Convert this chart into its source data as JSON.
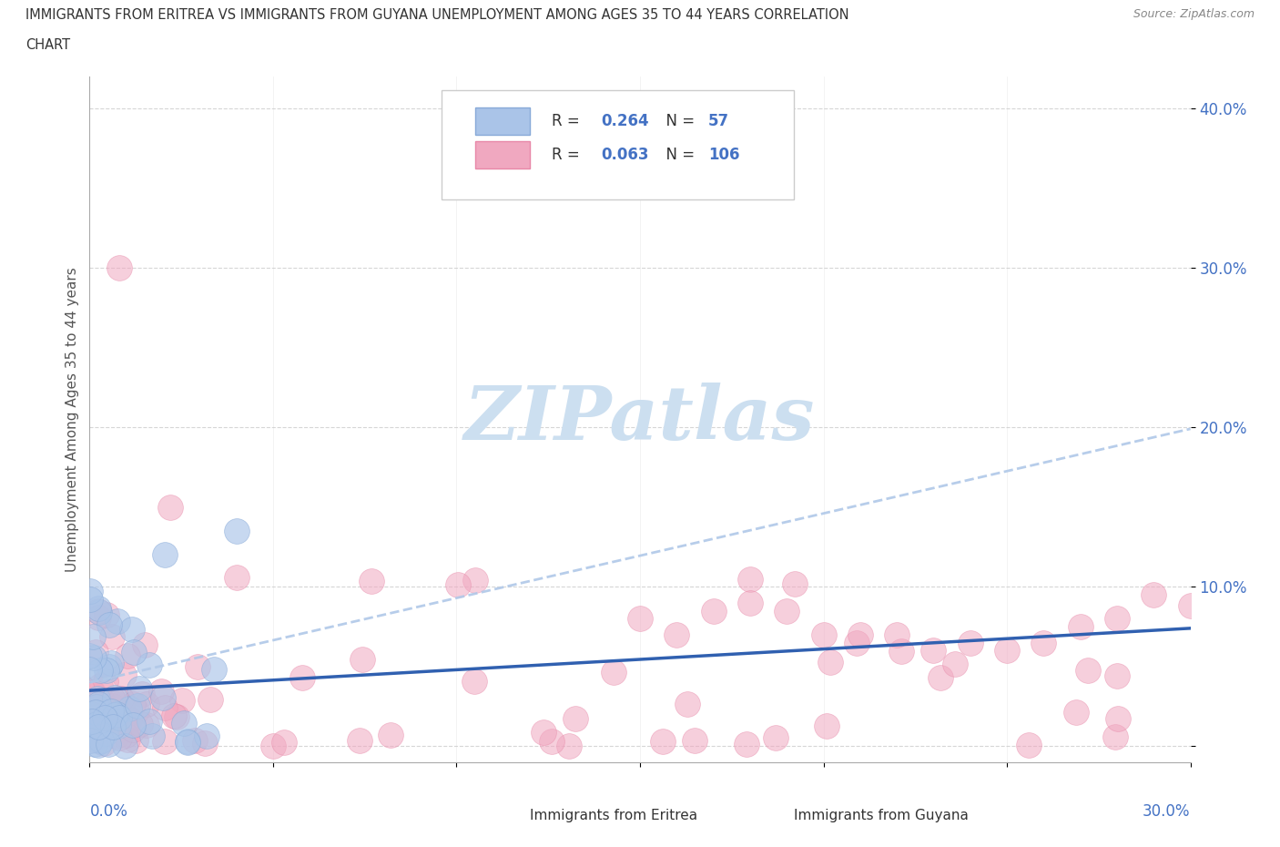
{
  "title_line1": "IMMIGRANTS FROM ERITREA VS IMMIGRANTS FROM GUYANA UNEMPLOYMENT AMONG AGES 35 TO 44 YEARS CORRELATION",
  "title_line2": "CHART",
  "source": "Source: ZipAtlas.com",
  "ylabel": "Unemployment Among Ages 35 to 44 years",
  "xlim": [
    0.0,
    0.3
  ],
  "ylim": [
    -0.01,
    0.42
  ],
  "eritrea_R": 0.264,
  "eritrea_N": 57,
  "guyana_R": 0.063,
  "guyana_N": 106,
  "eritrea_color": "#aac4e8",
  "guyana_color": "#f0a8c0",
  "eritrea_trend_color": "#3060b0",
  "guyana_trend_color": "#b0c8e8",
  "watermark_color": "#ccdff0",
  "legend_color_eritrea": "#4472c4",
  "legend_color_guyana": "#4472c4"
}
